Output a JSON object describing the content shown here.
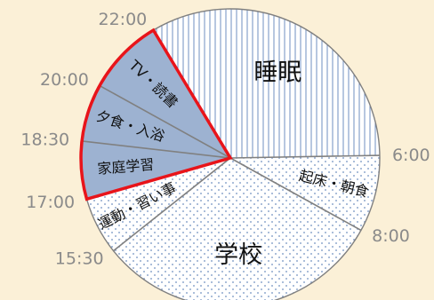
{
  "chart_data": {
    "type": "pie",
    "title": "",
    "unit": "hours",
    "slices": [
      {
        "label": "睡眠",
        "start": "22:00",
        "end": "6:00",
        "hours": 8.0,
        "pattern": "vertical-lines",
        "highlighted": false
      },
      {
        "label": "起床・朝食",
        "start": "6:00",
        "end": "8:00",
        "hours": 2.0,
        "pattern": "dots",
        "highlighted": false
      },
      {
        "label": "学校",
        "start": "8:00",
        "end": "15:30",
        "hours": 7.5,
        "pattern": "dots",
        "highlighted": false
      },
      {
        "label": "運動・習い事",
        "start": "15:30",
        "end": "17:00",
        "hours": 1.5,
        "pattern": "dots",
        "highlighted": false
      },
      {
        "label": "家庭学習",
        "start": "17:00",
        "end": "18:30",
        "hours": 1.5,
        "pattern": "solid",
        "highlighted": true
      },
      {
        "label": "夕食・入浴",
        "start": "18:30",
        "end": "20:00",
        "hours": 1.5,
        "pattern": "solid",
        "highlighted": true
      },
      {
        "label": "TV・読書",
        "start": "20:00",
        "end": "22:00",
        "hours": 2.0,
        "pattern": "solid",
        "highlighted": true
      }
    ],
    "time_labels": [
      "22:00",
      "6:00",
      "8:00",
      "15:30",
      "17:00",
      "18:30",
      "20:00"
    ],
    "colors": {
      "background": "#fbf0d7",
      "pie_fill": "#ffffff",
      "pattern": "#6f8fc0",
      "highlight_fill": "#9db2d1",
      "highlight_outline": "#e8141a",
      "divider": "#808080",
      "time_label": "#8a8a8a"
    },
    "legend": "none"
  }
}
